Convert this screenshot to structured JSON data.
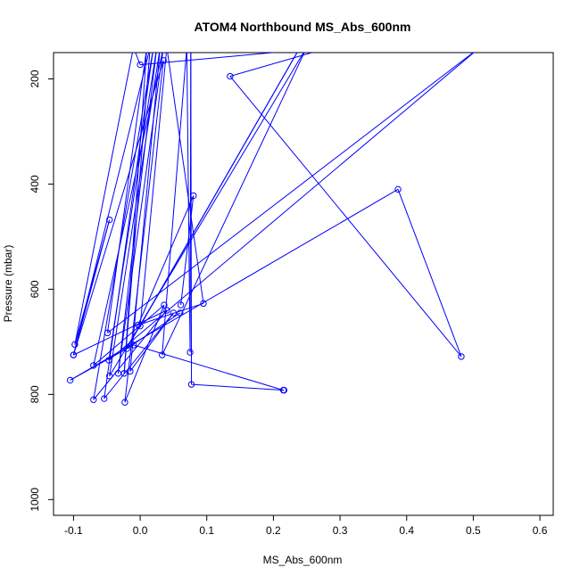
{
  "chart_data": {
    "type": "line",
    "title": "ATOM4 Northbound MS_Abs_600nm",
    "xlabel": "MS_Abs_600nm",
    "ylabel": "Pressure (mbar)",
    "xlim": [
      -0.13,
      0.62
    ],
    "ylim": [
      1030,
      150
    ],
    "y_reversed": true,
    "x_ticks": [
      -0.1,
      0.0,
      0.1,
      0.2,
      0.3,
      0.4,
      0.5,
      0.6
    ],
    "x_tick_labels": [
      "-0.1",
      "0.0",
      "0.1",
      "0.2",
      "0.3",
      "0.4",
      "0.5",
      "0.6"
    ],
    "y_ticks": [
      200,
      400,
      600,
      800,
      1000
    ],
    "y_tick_labels": [
      "200",
      "400",
      "600",
      "800",
      "1000"
    ],
    "series": [
      {
        "color": "#0000ff",
        "marker": "open-circle",
        "points": [
          {
            "x": 0.216,
            "y": 792
          },
          {
            "x": 0.077,
            "y": 781
          },
          {
            "x": 0.076,
            "y": 140
          },
          {
            "x": 0.075,
            "y": 720
          },
          {
            "x": 0.07,
            "y": 140
          },
          {
            "x": 0.033,
            "y": 725
          },
          {
            "x": 0.25,
            "y": 140
          },
          {
            "x": -0.046,
            "y": 765
          },
          {
            "x": 0.03,
            "y": 140
          },
          {
            "x": -0.015,
            "y": 756
          },
          {
            "x": 0.05,
            "y": 645
          },
          {
            "x": -0.054,
            "y": 808
          },
          {
            "x": 0.02,
            "y": 140
          },
          {
            "x": -0.07,
            "y": 810
          },
          {
            "x": 0.04,
            "y": 640
          },
          {
            "x": -0.1,
            "y": 725
          },
          {
            "x": 0.035,
            "y": 165
          },
          {
            "x": -0.023,
            "y": 815
          },
          {
            "x": 0.036,
            "y": 630
          },
          {
            "x": -0.07,
            "y": 745
          },
          {
            "x": 0.035,
            "y": 140
          },
          {
            "x": -0.033,
            "y": 760
          },
          {
            "x": 0.025,
            "y": 140
          },
          {
            "x": -0.047,
            "y": 735
          },
          {
            "x": 0.51,
            "y": 140
          },
          {
            "x": -0.049,
            "y": 683
          },
          {
            "x": 0.01,
            "y": 140
          },
          {
            "x": -0.024,
            "y": 760
          },
          {
            "x": 0.015,
            "y": 140
          },
          {
            "x": -0.1,
            "y": 725
          },
          {
            "x": -0.046,
            "y": 468
          },
          {
            "x": -0.098,
            "y": 705
          },
          {
            "x": -0.01,
            "y": 140
          },
          {
            "x": 0.0,
            "y": 173
          },
          {
            "x": 0.285,
            "y": 140
          },
          {
            "x": 0.135,
            "y": 195
          },
          {
            "x": 0.482,
            "y": 728
          },
          {
            "x": 0.387,
            "y": 410
          },
          {
            "x": -0.105,
            "y": 773
          },
          {
            "x": -0.01,
            "y": 706
          },
          {
            "x": 0.215,
            "y": 792
          }
        ]
      },
      {
        "color": "#0000ff",
        "marker": "open-circle",
        "points": [
          {
            "x": 0.061,
            "y": 630
          },
          {
            "x": 0.08,
            "y": 422
          },
          {
            "x": -0.003,
            "y": 668
          },
          {
            "x": 0.095,
            "y": 627
          },
          {
            "x": 0.04,
            "y": 140
          },
          {
            "x": 0.0,
            "y": 670
          },
          {
            "x": 0.24,
            "y": 140
          },
          {
            "x": -0.02,
            "y": 713
          },
          {
            "x": 0.06,
            "y": 645
          }
        ]
      }
    ]
  }
}
